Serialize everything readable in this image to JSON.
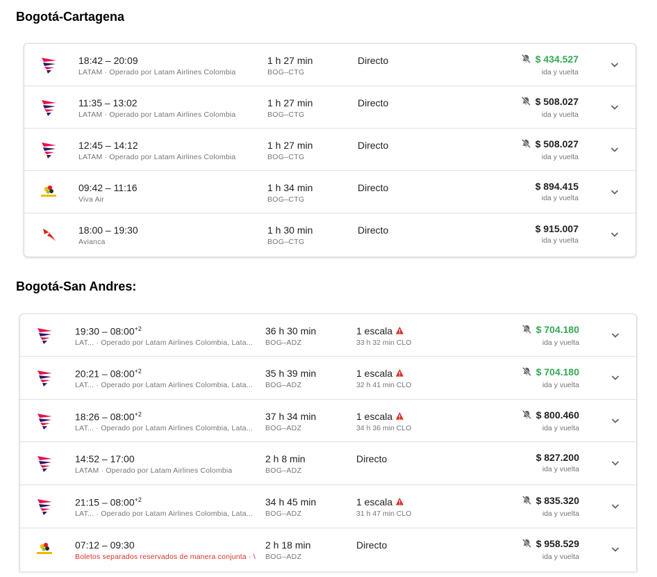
{
  "sections": [
    {
      "title": "Bogotá-Cartagena",
      "flights": [
        {
          "logo": "latam-logo",
          "times": "18:42 – 20:09",
          "sup": "",
          "airline": "LATAM · Operado por Latam Airlines Colombia",
          "warn": false,
          "duration": "1 h 27 min",
          "route": "BOG–CTG",
          "stops": "Directo",
          "stop_alert": false,
          "layover": "",
          "price": "$ 434.527",
          "price_color": "#34a853",
          "bell_off": true,
          "trip": "ida y vuelta"
        },
        {
          "logo": "latam-logo",
          "times": "11:35 – 13:02",
          "sup": "",
          "airline": "LATAM · Operado por Latam Airlines Colombia",
          "warn": false,
          "duration": "1 h 27 min",
          "route": "BOG–CTG",
          "stops": "Directo",
          "stop_alert": false,
          "layover": "",
          "price": "$ 508.027",
          "price_color": "#202124",
          "bell_off": true,
          "trip": "ida y vuelta"
        },
        {
          "logo": "latam-logo",
          "times": "12:45 – 14:12",
          "sup": "",
          "airline": "LATAM · Operado por Latam Airlines Colombia",
          "warn": false,
          "duration": "1 h 27 min",
          "route": "BOG–CTG",
          "stops": "Directo",
          "stop_alert": false,
          "layover": "",
          "price": "$ 508.027",
          "price_color": "#202124",
          "bell_off": true,
          "trip": "ida y vuelta"
        },
        {
          "logo": "vivaair-logo",
          "times": "09:42 – 11:16",
          "sup": "",
          "airline": "Viva Air",
          "warn": false,
          "duration": "1 h 34 min",
          "route": "BOG–CTG",
          "stops": "Directo",
          "stop_alert": false,
          "layover": "",
          "price": "$ 894.415",
          "price_color": "#202124",
          "bell_off": false,
          "trip": "ida y vuelta"
        },
        {
          "logo": "avianca-logo",
          "times": "18:00 – 19:30",
          "sup": "",
          "airline": "Avianca",
          "warn": false,
          "duration": "1 h 30 min",
          "route": "BOG–CTG",
          "stops": "Directo",
          "stop_alert": false,
          "layover": "",
          "price": "$ 915.007",
          "price_color": "#202124",
          "bell_off": false,
          "trip": "ida y vuelta"
        }
      ]
    },
    {
      "title": "Bogotá-San Andres:",
      "flights": [
        {
          "logo": "latam-logo",
          "times": "19:30 – 08:00",
          "sup": "+2",
          "airline": "LAT... · Operado por Latam Airlines Colombia, Lata...",
          "warn": false,
          "duration": "36 h 30 min",
          "route": "BOG–ADZ",
          "stops": "1 escala",
          "stop_alert": true,
          "layover": "33 h 32 min CLO",
          "price": "$ 704.180",
          "price_color": "#34a853",
          "bell_off": true,
          "trip": "ida y vuelta"
        },
        {
          "logo": "latam-logo",
          "times": "20:21 – 08:00",
          "sup": "+2",
          "airline": "LAT... · Operado por Latam Airlines Colombia, Lata...",
          "warn": false,
          "duration": "35 h 39 min",
          "route": "BOG–ADZ",
          "stops": "1 escala",
          "stop_alert": true,
          "layover": "32 h 41 min CLO",
          "price": "$ 704.180",
          "price_color": "#34a853",
          "bell_off": true,
          "trip": "ida y vuelta"
        },
        {
          "logo": "latam-logo",
          "times": "18:26 – 08:00",
          "sup": "+2",
          "airline": "LAT... · Operado por Latam Airlines Colombia, Lata...",
          "warn": false,
          "duration": "37 h 34 min",
          "route": "BOG–ADZ",
          "stops": "1 escala",
          "stop_alert": true,
          "layover": "34 h 36 min CLO",
          "price": "$ 800.460",
          "price_color": "#202124",
          "bell_off": true,
          "trip": "ida y vuelta"
        },
        {
          "logo": "latam-logo",
          "times": "14:52 – 17:00",
          "sup": "",
          "airline": "LATAM · Operado por Latam Airlines Colombia",
          "warn": false,
          "duration": "2 h 8 min",
          "route": "BOG–ADZ",
          "stops": "Directo",
          "stop_alert": false,
          "layover": "",
          "price": "$ 827.200",
          "price_color": "#202124",
          "bell_off": false,
          "trip": "ida y vuelta"
        },
        {
          "logo": "latam-logo",
          "times": "21:15 – 08:00",
          "sup": "+2",
          "airline": "LAT... · Operado por Latam Airlines Colombia, Lata...",
          "warn": false,
          "duration": "34 h 45 min",
          "route": "BOG–ADZ",
          "stops": "1 escala",
          "stop_alert": true,
          "layover": "31 h 47 min CLO",
          "price": "$ 835.320",
          "price_color": "#202124",
          "bell_off": true,
          "trip": "ida y vuelta"
        },
        {
          "logo": "vivaair-logo",
          "times": "07:12 – 09:30",
          "sup": "",
          "airline": "Boletos separados reservados de manera conjunta · \\",
          "warn": true,
          "duration": "2 h 18 min",
          "route": "BOG–ADZ",
          "stops": "Directo",
          "stop_alert": false,
          "layover": "",
          "price": "$ 958.529",
          "price_color": "#202124",
          "bell_off": true,
          "trip": "ida y vuelta"
        }
      ]
    }
  ]
}
